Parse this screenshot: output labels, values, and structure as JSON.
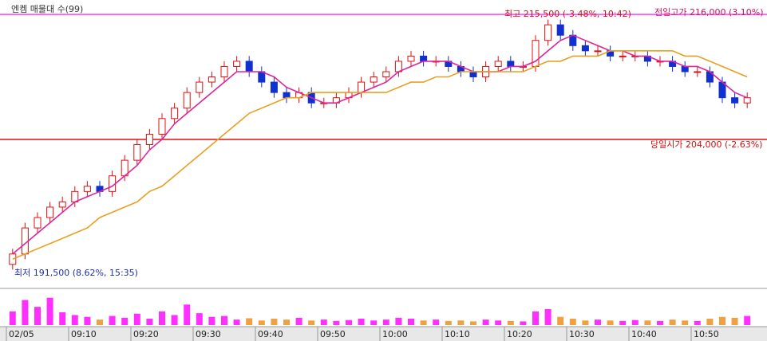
{
  "chart_data": {
    "type": "candlestick",
    "title": "엔켐 매물대 수(99)",
    "categories": [
      "02/05",
      null,
      null,
      null,
      null,
      "09:10",
      null,
      null,
      null,
      null,
      "09:20",
      null,
      null,
      null,
      null,
      "09:30",
      null,
      null,
      null,
      null,
      "09:40",
      null,
      null,
      null,
      null,
      "09:50",
      null,
      null,
      null,
      null,
      "10:00",
      null,
      null,
      null,
      null,
      "10:10",
      null,
      null,
      null,
      null,
      "10:20",
      null,
      null,
      null,
      null,
      "10:30",
      null,
      null,
      null,
      null,
      "10:40",
      null,
      null,
      null,
      null,
      "10:50",
      null,
      null,
      null,
      null
    ],
    "open": [
      192000,
      193000,
      195500,
      196500,
      197500,
      198000,
      199000,
      199500,
      199000,
      200500,
      202000,
      203500,
      204500,
      206000,
      207000,
      208500,
      209500,
      210000,
      211000,
      211500,
      210500,
      209500,
      208500,
      208000,
      208500,
      207500,
      207500,
      208000,
      208500,
      209500,
      210000,
      210500,
      211500,
      212000,
      211500,
      211500,
      211000,
      210500,
      210000,
      211000,
      211500,
      211000,
      211000,
      213500,
      215000,
      214000,
      213000,
      212500,
      212500,
      212000,
      212000,
      212000,
      211500,
      211500,
      211000,
      210500,
      210500,
      209500,
      208000,
      207500
    ],
    "high": [
      193500,
      196000,
      197000,
      198000,
      198500,
      199500,
      200000,
      200000,
      201000,
      202500,
      204000,
      205000,
      206500,
      207500,
      209000,
      210000,
      210500,
      211500,
      212000,
      212000,
      211000,
      210000,
      209000,
      209000,
      209000,
      208000,
      208500,
      209000,
      210000,
      210500,
      211000,
      212000,
      212500,
      212500,
      212000,
      212000,
      211500,
      211000,
      211500,
      212000,
      212000,
      211500,
      214000,
      215500,
      215500,
      214500,
      213500,
      213000,
      213000,
      212500,
      212500,
      212500,
      212000,
      212000,
      211500,
      211000,
      211000,
      210000,
      208500,
      208500
    ],
    "low": [
      191500,
      192500,
      195000,
      196000,
      197000,
      197500,
      198500,
      198500,
      198500,
      200000,
      201500,
      203000,
      204000,
      205500,
      206500,
      208000,
      209000,
      209500,
      210500,
      210000,
      209000,
      208000,
      207500,
      207500,
      207000,
      207000,
      207000,
      207500,
      208000,
      209000,
      209500,
      210000,
      211000,
      211000,
      211000,
      210500,
      210000,
      209500,
      209500,
      210500,
      210500,
      210500,
      210500,
      213000,
      213500,
      212500,
      212000,
      212000,
      211500,
      211500,
      211500,
      211000,
      211000,
      210500,
      210000,
      210000,
      209000,
      207500,
      207000,
      207000
    ],
    "close": [
      193000,
      195500,
      196500,
      197500,
      198000,
      199000,
      199500,
      199000,
      200500,
      202000,
      203500,
      204500,
      206000,
      207000,
      208500,
      209500,
      210000,
      211000,
      211500,
      210500,
      209500,
      208500,
      208000,
      208500,
      207500,
      207500,
      208000,
      208500,
      209500,
      210000,
      210500,
      211500,
      212000,
      211500,
      211500,
      211000,
      210500,
      210000,
      211000,
      211500,
      211000,
      211000,
      213500,
      215000,
      214000,
      213000,
      212500,
      212500,
      212000,
      212000,
      212000,
      211500,
      211500,
      211000,
      210500,
      210500,
      209500,
      208000,
      207500,
      208000
    ],
    "volume": [
      30,
      55,
      40,
      60,
      28,
      22,
      18,
      12,
      20,
      16,
      25,
      14,
      30,
      22,
      45,
      26,
      18,
      20,
      12,
      15,
      10,
      14,
      12,
      16,
      10,
      12,
      9,
      11,
      14,
      10,
      12,
      16,
      14,
      10,
      12,
      9,
      10,
      8,
      12,
      10,
      9,
      8,
      30,
      35,
      18,
      14,
      10,
      12,
      10,
      9,
      11,
      10,
      9,
      12,
      10,
      9,
      14,
      18,
      16,
      20
    ],
    "series": [
      {
        "color": "#e0249a",
        "values": [
          193000,
          194000,
          195000,
          196000,
          197000,
          198000,
          198500,
          199000,
          199500,
          200500,
          201500,
          203000,
          204000,
          205500,
          206500,
          207500,
          208500,
          209500,
          210500,
          210500,
          210500,
          210000,
          209000,
          208500,
          208000,
          207500,
          207500,
          208000,
          208500,
          209000,
          209500,
          210500,
          211000,
          211500,
          211500,
          211500,
          211000,
          210500,
          210500,
          210500,
          211000,
          211000,
          211500,
          212500,
          213500,
          214000,
          213500,
          213000,
          212500,
          212500,
          212000,
          212000,
          211500,
          211500,
          211000,
          211000,
          210500,
          209500,
          208500,
          208000
        ]
      },
      {
        "color": "#e8a020",
        "values": [
          192500,
          193000,
          193500,
          194000,
          194500,
          195000,
          195500,
          196500,
          197000,
          197500,
          198000,
          199000,
          199500,
          200500,
          201500,
          202500,
          203500,
          204500,
          205500,
          206500,
          207000,
          207500,
          208000,
          208000,
          208500,
          208500,
          208500,
          208500,
          208500,
          208500,
          208500,
          209000,
          209500,
          209500,
          210000,
          210000,
          210500,
          210500,
          210500,
          210500,
          210500,
          210500,
          211000,
          211500,
          211500,
          212000,
          212000,
          212000,
          212500,
          212500,
          212500,
          212500,
          212500,
          212500,
          212000,
          212000,
          211500,
          211000,
          210500,
          210000
        ]
      }
    ],
    "up_color": "#e01010",
    "down_color": "#1030d0",
    "hlines": [
      {
        "value": 216000,
        "color": "#ff40ff"
      },
      {
        "value": 204000,
        "color": "#e01010"
      }
    ],
    "annotations": [
      {
        "text": "최고 215,500 (-3.48%, 10:42)",
        "color": "#d01010"
      },
      {
        "text": "전일고가 216,000 (3.10%)",
        "color": "#d01060"
      },
      {
        "text": "당일시가 204,000 (-2.63%)",
        "color": "#d01010"
      },
      {
        "text": "최저 191,500 (8.62%, 15:35)",
        "color": "#2030a0"
      }
    ],
    "ylim": [
      190000,
      217000
    ],
    "y2lim": [
      0,
      70
    ]
  }
}
